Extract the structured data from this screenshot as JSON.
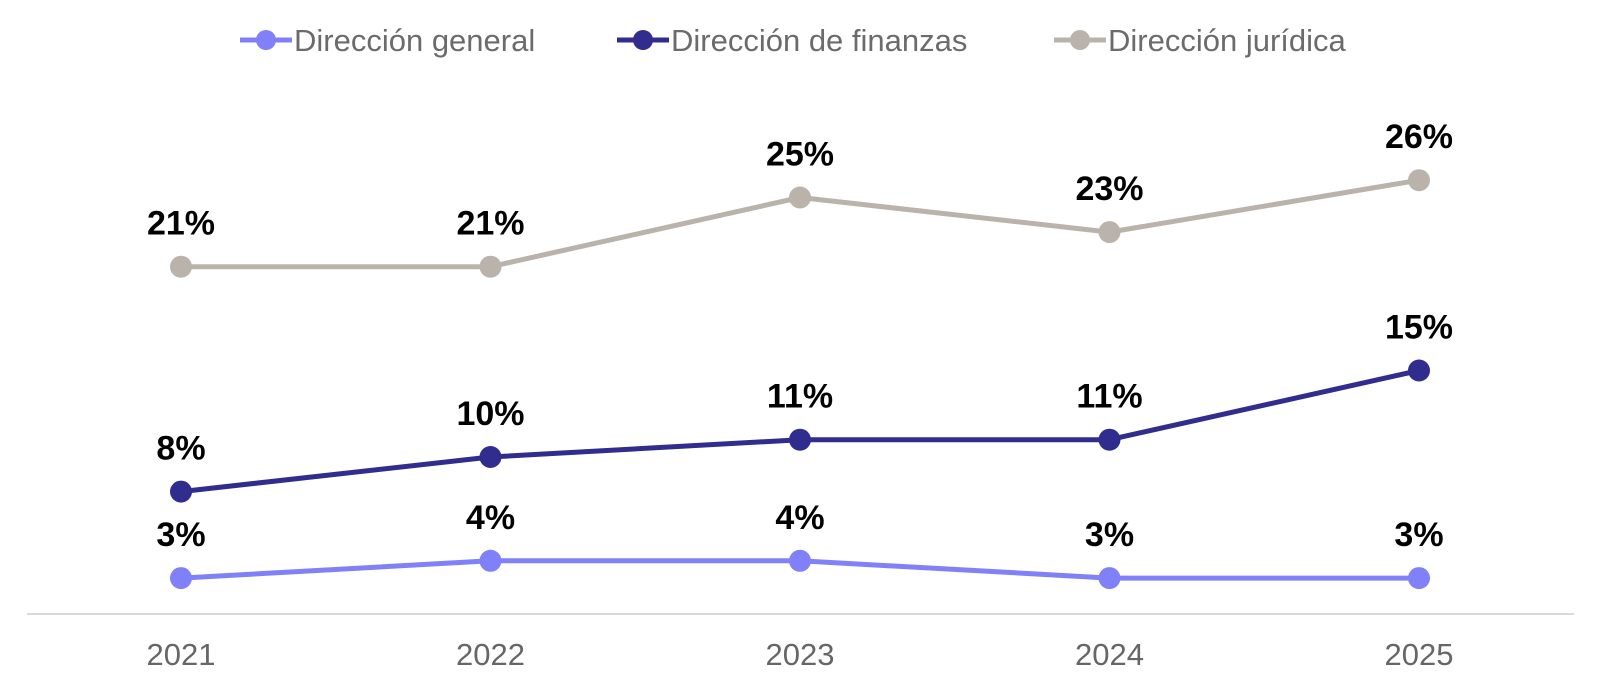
{
  "chart_data": {
    "type": "line",
    "categories": [
      "2021",
      "2022",
      "2023",
      "2024",
      "2025"
    ],
    "series": [
      {
        "name": "Dirección general",
        "color": "#8080f8",
        "values": [
          3,
          4,
          4,
          3,
          3
        ],
        "labels": [
          "3%",
          "4%",
          "4%",
          "3%",
          "3%"
        ]
      },
      {
        "name": "Dirección de finanzas",
        "color": "#302d8e",
        "values": [
          8,
          10,
          11,
          11,
          15
        ],
        "labels": [
          "8%",
          "10%",
          "11%",
          "11%",
          "15%"
        ]
      },
      {
        "name": "Dirección jurídica",
        "color": "#b9b3ab",
        "values": [
          21,
          21,
          25,
          23,
          26
        ],
        "labels": [
          "21%",
          "21%",
          "25%",
          "23%",
          "26%"
        ]
      }
    ],
    "ylim": [
      0,
      30
    ],
    "grid": false,
    "legend_position": "top-center",
    "xlabel": "",
    "ylabel": "",
    "title": ""
  }
}
